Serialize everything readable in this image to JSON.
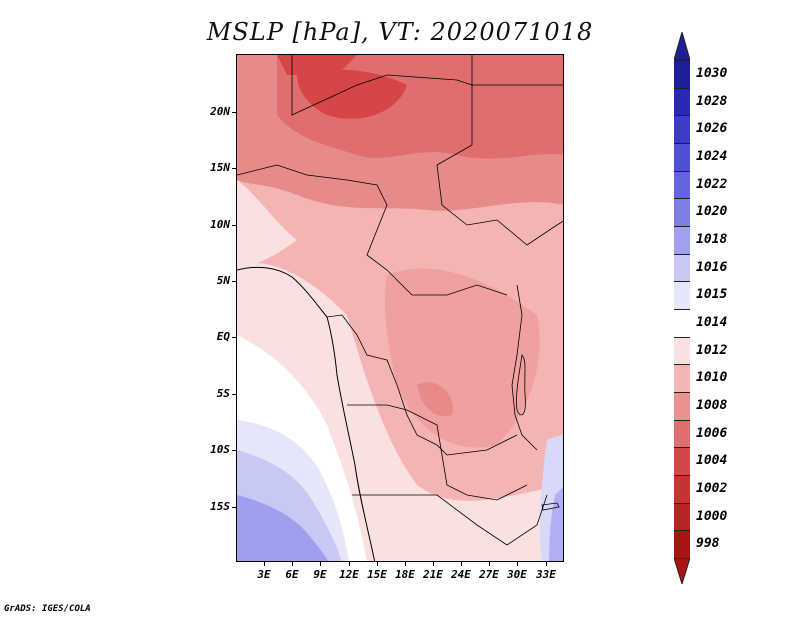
{
  "title": "MSLP [hPa], VT: 2020071018",
  "credit": "GrADS: IGES/COLA",
  "map": {
    "lat_labels": [
      "20N",
      "15N",
      "10N",
      "5N",
      "EQ",
      "5S",
      "10S",
      "15S"
    ],
    "lon_labels": [
      "3E",
      "6E",
      "9E",
      "12E",
      "15E",
      "18E",
      "21E",
      "24E",
      "27E",
      "30E",
      "33E"
    ]
  },
  "legend": {
    "labels": [
      "1030",
      "1028",
      "1026",
      "1024",
      "1022",
      "1020",
      "1018",
      "1016",
      "1015",
      "1014",
      "1012",
      "1010",
      "1008",
      "1006",
      "1004",
      "1002",
      "1000",
      "998"
    ],
    "colors": [
      "#1e1e96",
      "#2828b4",
      "#3c3cc8",
      "#5050d2",
      "#6464dc",
      "#7d7de6",
      "#a0a0f0",
      "#c8c8f5",
      "#e6e6fa",
      "#ffffff",
      "#fae1e1",
      "#f5b4b4",
      "#eb9191",
      "#e16e6e",
      "#d74646",
      "#c83232",
      "#b92323",
      "#aa1414"
    ]
  },
  "chart_data": {
    "type": "heatmap",
    "title": "MSLP [hPa], VT: 2020071018",
    "variable": "MSLP",
    "units": "hPa",
    "valid_time": "2020071018",
    "x_ticks": [
      "3E",
      "6E",
      "9E",
      "12E",
      "15E",
      "18E",
      "21E",
      "24E",
      "27E",
      "30E",
      "33E"
    ],
    "y_ticks": [
      "20N",
      "15N",
      "10N",
      "5N",
      "EQ",
      "5S",
      "10S",
      "15S"
    ],
    "color_levels": [
      1030,
      1028,
      1026,
      1024,
      1022,
      1020,
      1018,
      1016,
      1015,
      1014,
      1012,
      1010,
      1008,
      1006,
      1004,
      1002,
      1000,
      998
    ]
  }
}
